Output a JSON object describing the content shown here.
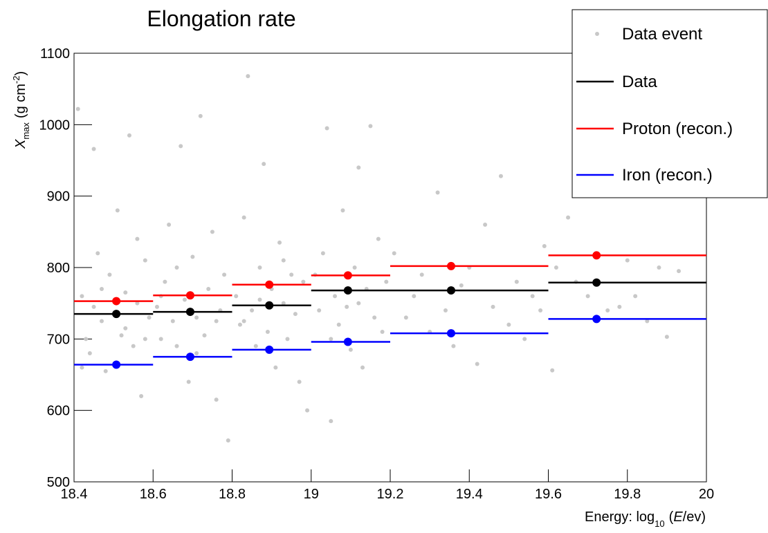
{
  "chart_data": {
    "type": "binned-profile",
    "title": "Elongation rate",
    "xlabel": [
      "Energy: log",
      "10",
      "(",
      "E",
      "/ev)"
    ],
    "ylabel": [
      "X",
      "max",
      "(g cm",
      "-2",
      ")"
    ],
    "xlim": [
      18.4,
      20
    ],
    "ylim": [
      500,
      1100
    ],
    "xticks": [
      18.4,
      18.6,
      18.8,
      19,
      19.2,
      19.4,
      19.6,
      19.8,
      20
    ],
    "yticks": [
      500,
      600,
      700,
      800,
      900,
      1000,
      1100
    ],
    "legend": "top-right",
    "bins": [
      18.4,
      18.6,
      18.8,
      19,
      19.2,
      19.6,
      20
    ],
    "scatter": {
      "name": "Data event",
      "color": "#c8c8c8",
      "x": [
        18.41,
        18.42,
        18.43,
        18.44,
        18.45,
        18.46,
        18.47,
        18.48,
        18.49,
        18.5,
        18.51,
        18.52,
        18.53,
        18.54,
        18.55,
        18.56,
        18.57,
        18.58,
        18.59,
        18.45,
        18.47,
        18.53,
        18.56,
        18.42,
        18.58,
        18.61,
        18.62,
        18.63,
        18.64,
        18.65,
        18.66,
        18.67,
        18.68,
        18.69,
        18.7,
        18.71,
        18.72,
        18.73,
        18.74,
        18.75,
        18.76,
        18.77,
        18.78,
        18.79,
        18.62,
        18.66,
        18.71,
        18.76,
        18.81,
        18.82,
        18.83,
        18.84,
        18.85,
        18.86,
        18.87,
        18.88,
        18.89,
        18.9,
        18.91,
        18.92,
        18.93,
        18.94,
        18.95,
        18.96,
        18.97,
        18.98,
        18.99,
        18.83,
        18.87,
        18.93,
        19.01,
        19.02,
        19.03,
        19.04,
        19.05,
        19.06,
        19.07,
        19.08,
        19.09,
        19.1,
        19.11,
        19.12,
        19.13,
        19.14,
        19.15,
        19.16,
        19.17,
        19.18,
        19.19,
        19.05,
        19.12,
        19.21,
        19.24,
        19.26,
        19.28,
        19.3,
        19.32,
        19.34,
        19.36,
        19.38,
        19.4,
        19.42,
        19.44,
        19.46,
        19.48,
        19.5,
        19.52,
        19.54,
        19.56,
        19.58,
        19.59,
        19.62,
        19.65,
        19.67,
        19.7,
        19.72,
        19.75,
        19.78,
        19.8,
        19.85,
        19.88,
        19.9,
        19.93,
        19.61,
        19.82
      ],
      "values": [
        1022,
        760,
        700,
        680,
        745,
        820,
        725,
        655,
        790,
        735,
        880,
        705,
        765,
        985,
        690,
        750,
        620,
        810,
        730,
        966,
        770,
        715,
        840,
        660,
        700,
        745,
        700,
        780,
        860,
        725,
        690,
        970,
        755,
        640,
        815,
        730,
        1012,
        705,
        770,
        850,
        615,
        740,
        790,
        558,
        760,
        800,
        680,
        725,
        760,
        720,
        870,
        1068,
        740,
        690,
        800,
        945,
        710,
        770,
        660,
        835,
        750,
        700,
        790,
        735,
        640,
        780,
        600,
        725,
        755,
        810,
        790,
        740,
        820,
        995,
        700,
        760,
        720,
        880,
        745,
        685,
        800,
        940,
        660,
        770,
        998,
        730,
        840,
        710,
        780,
        585,
        750,
        820,
        730,
        760,
        790,
        710,
        905,
        740,
        690,
        775,
        800,
        665,
        860,
        745,
        928,
        720,
        780,
        700,
        760,
        740,
        830,
        800,
        870,
        780,
        760,
        820,
        740,
        745,
        810,
        725,
        800,
        703,
        795,
        656,
        760
      ]
    },
    "series": [
      {
        "name": "Data",
        "color": "#000000",
        "x": [
          18.507,
          18.694,
          18.894,
          19.093,
          19.354,
          19.722
        ],
        "values": [
          735,
          738,
          747,
          768,
          768,
          779
        ]
      },
      {
        "name": "Proton (recon.)",
        "color": "#ff0000",
        "x": [
          18.507,
          18.694,
          18.894,
          19.093,
          19.354,
          19.722
        ],
        "values": [
          753,
          761,
          776,
          789,
          802,
          817
        ]
      },
      {
        "name": "Iron (recon.)",
        "color": "#0000ff",
        "x": [
          18.507,
          18.694,
          18.894,
          19.093,
          19.354,
          19.722
        ],
        "values": [
          664,
          675,
          685,
          696,
          708,
          728
        ]
      }
    ]
  }
}
